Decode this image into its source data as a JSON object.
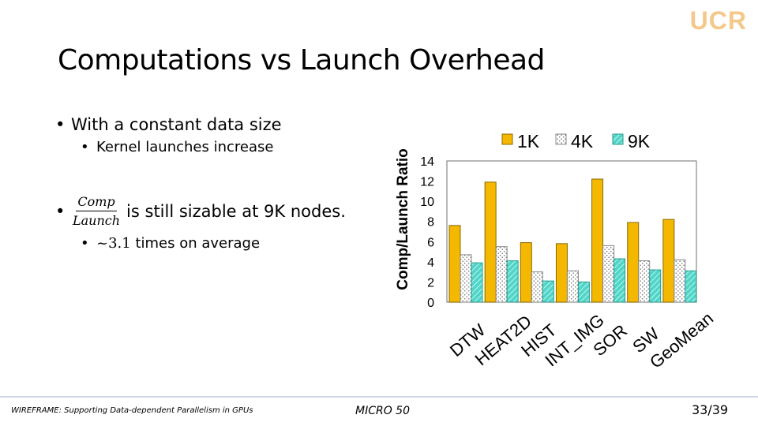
{
  "logo_text": "UCR",
  "slide_title": "Computations vs Launch Overhead",
  "bullets": {
    "b1": "With a constant data size",
    "b1_sub": "Kernel launches increase",
    "frac_num": "Comp",
    "frac_den": "Launch",
    "b2_rest": "is still sizable at 9K nodes.",
    "b2_sub_tilde": "~3.1",
    "b2_sub_rest": "times on average"
  },
  "footer": {
    "paper": "WIREFRAME: Supporting Data-dependent Parallelism in GPUs",
    "venue": "MICRO 50",
    "page": "33/39"
  },
  "colors": {
    "s1k": "#f5b800",
    "s4k": "#bdbdbd",
    "s9k": "#4fd6c8"
  },
  "chart_data": {
    "type": "bar",
    "ylabel": "Comp/Launch Ratio",
    "ylim": [
      0,
      14
    ],
    "yticks": [
      "14",
      "12",
      "10",
      "8",
      "6",
      "4",
      "2",
      "0"
    ],
    "categories": [
      "DTW",
      "HEAT2D",
      "HIST",
      "INT_IMG",
      "SOR",
      "SW",
      "GeoMean"
    ],
    "series": [
      {
        "name": "1K",
        "values": [
          7.6,
          11.9,
          5.9,
          5.8,
          12.2,
          7.9,
          8.2
        ]
      },
      {
        "name": "4K",
        "values": [
          4.7,
          5.5,
          3.0,
          3.1,
          5.6,
          4.1,
          4.2
        ]
      },
      {
        "name": "9K",
        "values": [
          3.9,
          4.1,
          2.1,
          2.0,
          4.3,
          3.2,
          3.1
        ]
      }
    ],
    "grid": false,
    "legend_position": "top"
  }
}
